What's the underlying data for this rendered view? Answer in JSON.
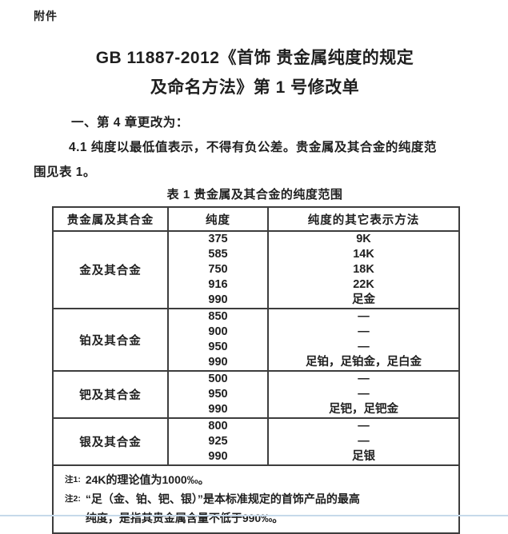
{
  "doc": {
    "attachment_label": "附件",
    "title_lines": [
      "GB 11887-2012《首饰 贵金属纯度的规定",
      "及命名方法》第 1 号修改单"
    ],
    "clause_heading": "一、第 4 章更改为：",
    "clause_body_lines": [
      "4.1 纯度以最低值表示，不得有负公差。贵金属及其合金的纯度范",
      "围见表 1。"
    ],
    "table_caption": "表 1 贵金属及其合金的纯度范围"
  },
  "table": {
    "headers": [
      "贵金属及其合金",
      "纯度",
      "纯度的其它表示方法"
    ],
    "groups": [
      {
        "metal": "金及其合金",
        "purities": [
          "375",
          "585",
          "750",
          "916",
          "990"
        ],
        "alts": [
          "9K",
          "14K",
          "18K",
          "22K",
          "足金"
        ]
      },
      {
        "metal": "铂及其合金",
        "purities": [
          "850",
          "900",
          "950",
          "990"
        ],
        "alts": [
          "—",
          "—",
          "—",
          "足铂，足铂金，足白金"
        ]
      },
      {
        "metal": "钯及其合金",
        "purities": [
          "500",
          "950",
          "990"
        ],
        "alts": [
          "—",
          "—",
          "足钯，足钯金"
        ]
      },
      {
        "metal": "银及其合金",
        "purities": [
          "800",
          "925",
          "990"
        ],
        "alts": [
          "—",
          "—",
          "足银"
        ]
      }
    ],
    "notes": [
      {
        "label": "注1:",
        "lines": [
          "24K的理论值为1000‰。"
        ]
      },
      {
        "label": "注2:",
        "lines": [
          "“足（金、铂、钯、银）”是本标准规定的首饰产品的最高",
          "纯度，是指其贵金属含量不低于990‰。"
        ]
      }
    ]
  },
  "colors": {
    "text": "#1f1f1f",
    "table_border": "#3d3d3d",
    "bottom_divider": "#c6d9ea"
  }
}
